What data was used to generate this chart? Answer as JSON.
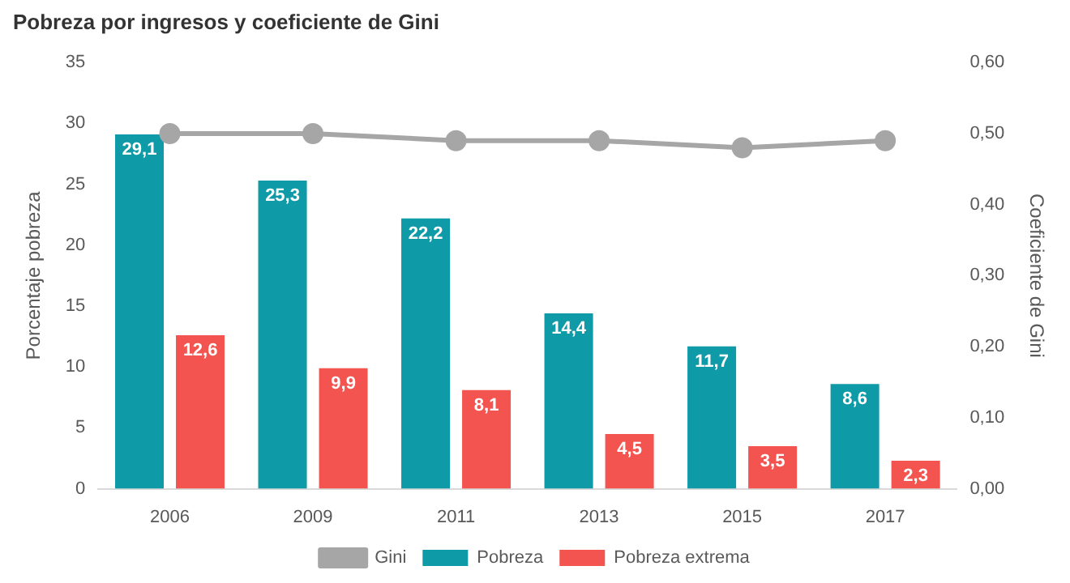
{
  "chart_data": {
    "type": "bar",
    "title": "Pobreza por ingresos y coeficiente de Gini",
    "ylabel": "Porcentaje pobreza",
    "y2label": "Coeficiente de Gini",
    "categories": [
      "2006",
      "2009",
      "2011",
      "2013",
      "2015",
      "2017"
    ],
    "series": [
      {
        "name": "Pobreza",
        "color": "#0e9aa7",
        "values": [
          29.1,
          25.3,
          22.2,
          14.4,
          11.7,
          8.6
        ],
        "value_labels": [
          "29,1",
          "25,3",
          "22,2",
          "14,4",
          "11,7",
          "8,6"
        ]
      },
      {
        "name": "Pobreza extrema",
        "color": "#f4544f",
        "values": [
          12.6,
          9.9,
          8.1,
          4.5,
          3.5,
          2.3
        ],
        "value_labels": [
          "12,6",
          "9,9",
          "8,1",
          "4,5",
          "3,5",
          "2,3"
        ]
      },
      {
        "name": "Gini",
        "type": "line",
        "axis": "y2",
        "color": "#a6a6a6",
        "marker": "circle",
        "values": [
          0.5,
          0.5,
          0.49,
          0.49,
          0.48,
          0.49
        ]
      }
    ],
    "ylim": [
      0,
      35
    ],
    "yticks": [
      0,
      5,
      10,
      15,
      20,
      25,
      30,
      35
    ],
    "y2lim": [
      0,
      0.6
    ],
    "y2ticks": [
      {
        "value": 0,
        "label": "0,00"
      },
      {
        "value": 0.1,
        "label": "0,10"
      },
      {
        "value": 0.2,
        "label": "0,20"
      },
      {
        "value": 0.3,
        "label": "0,30"
      },
      {
        "value": 0.4,
        "label": "0,40"
      },
      {
        "value": 0.5,
        "label": "0,50"
      },
      {
        "value": 0.6,
        "label": "0,60"
      }
    ],
    "grid": false,
    "legend": "bottom"
  }
}
